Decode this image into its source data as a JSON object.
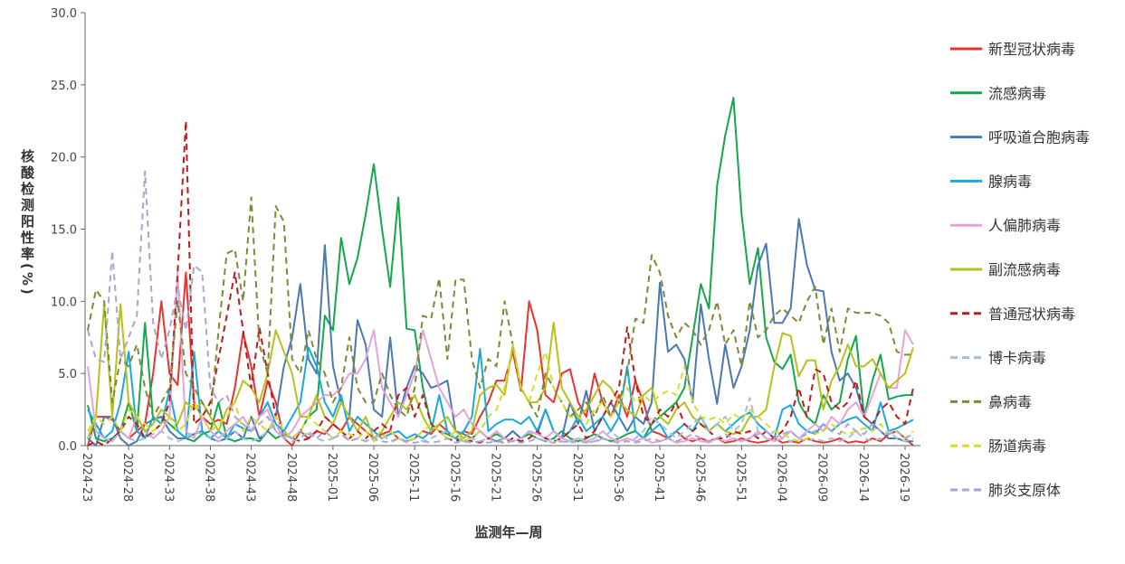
{
  "chart_data": {
    "type": "line",
    "y_label": "核酸检测阳性率(%)",
    "x_label": "监测年—周",
    "ylim": [
      0,
      30
    ],
    "yticks": [
      {
        "value": 0,
        "label": "0.0"
      },
      {
        "value": 5,
        "label": "5.0"
      },
      {
        "value": 10,
        "label": "10.0"
      },
      {
        "value": 15,
        "label": "15.0"
      },
      {
        "value": 20,
        "label": "20.0"
      },
      {
        "value": 25,
        "label": "25.0"
      },
      {
        "value": 30,
        "label": "30.0"
      }
    ],
    "categories": [
      "2024-23",
      null,
      null,
      null,
      null,
      "2024-28",
      null,
      null,
      null,
      null,
      "2024-33",
      null,
      null,
      null,
      null,
      "2024-38",
      null,
      null,
      null,
      null,
      "2024-43",
      null,
      null,
      null,
      null,
      "2024-48",
      null,
      null,
      null,
      null,
      "2025-01",
      null,
      null,
      null,
      null,
      "2025-06",
      null,
      null,
      null,
      null,
      "2025-11",
      null,
      null,
      null,
      null,
      "2025-16",
      null,
      null,
      null,
      null,
      "2025-21",
      null,
      null,
      null,
      null,
      "2025-26",
      null,
      null,
      null,
      null,
      "2025-31",
      null,
      null,
      null,
      null,
      "2025-36",
      null,
      null,
      null,
      null,
      "2025-41",
      null,
      null,
      null,
      null,
      "2025-46",
      null,
      null,
      null,
      null,
      "2025-51",
      null,
      null,
      null,
      null,
      "2026-04",
      null,
      null,
      null,
      null,
      "2026-09",
      null,
      null,
      null,
      null,
      "2026-14",
      null,
      null,
      null,
      null,
      "2026-19",
      null
    ],
    "series": [
      {
        "name": "新型冠状病毒",
        "color": "#e8332e",
        "dashed": false,
        "values": [
          0,
          2,
          2,
          1.8,
          1,
          0.5,
          1,
          1.5,
          5,
          10,
          5,
          4.2,
          12,
          3,
          2,
          1.5,
          1.8,
          1.5,
          4,
          7.8,
          5.5,
          2,
          4.5,
          3,
          0.5,
          0,
          1,
          0.5,
          1,
          0.8,
          1.5,
          1,
          2,
          1.5,
          1,
          0.5,
          0.8,
          1,
          0.5,
          0.3,
          0.5,
          1,
          0.8,
          1.5,
          1,
          0.5,
          1,
          0.8,
          2,
          3,
          4.5,
          4.5,
          6.5,
          3.8,
          10,
          8,
          3.5,
          3,
          5,
          5.3,
          3,
          2,
          5,
          3,
          2,
          3.5,
          2,
          4.5,
          3,
          1,
          0.8,
          0.5,
          1,
          0.5,
          0.3,
          0.5,
          0.3,
          0.5,
          0.2,
          0.3,
          0.5,
          0.3,
          0.2,
          0.3,
          0.5,
          0.2,
          0.3,
          0.2,
          0.5,
          0.3,
          0.2,
          0.3,
          0.5,
          0.2,
          0.3,
          0.2,
          0.5,
          0.3,
          0.8,
          1,
          0.5,
          0
        ]
      },
      {
        "name": "流感病毒",
        "color": "#13a84a",
        "dashed": false,
        "values": [
          2.8,
          0.5,
          0.3,
          0.5,
          1,
          3,
          1,
          8.5,
          1.8,
          2,
          1.5,
          1,
          0.5,
          0.3,
          0.8,
          1,
          3,
          0.5,
          0.3,
          0.5,
          0.5,
          0.3,
          1,
          0.5,
          0.8,
          0.5,
          1,
          2,
          2.5,
          9,
          8,
          14.4,
          11.2,
          13,
          16,
          19.5,
          15,
          11,
          17.2,
          8.1,
          8,
          4,
          1.5,
          1,
          0.8,
          0.5,
          0.3,
          0.5,
          1,
          0.5,
          0.8,
          0.5,
          1,
          0.5,
          0.8,
          0.5,
          0.3,
          0.5,
          1,
          0.5,
          0.3,
          0.5,
          0.8,
          0.5,
          0.3,
          0.5,
          0.8,
          1,
          0.5,
          1.5,
          2,
          2.5,
          3,
          4,
          7.5,
          11.2,
          9.5,
          18,
          21.5,
          24.1,
          16,
          11.2,
          13.7,
          7.5,
          5.8,
          5.3,
          6.3,
          3,
          2,
          1.5,
          3.5,
          2.5,
          3,
          6,
          7.6,
          2,
          4.5,
          6.3,
          3.2,
          3.4,
          3.5,
          3.5
        ]
      },
      {
        "name": "呼吸道合胞病毒",
        "color": "#4a78b4",
        "dashed": false,
        "values": [
          0.5,
          0,
          2,
          2,
          0.5,
          0,
          0.3,
          1.5,
          1.8,
          2,
          1,
          0.5,
          0.5,
          0.8,
          1,
          0.5,
          0.3,
          0.5,
          1,
          0.5,
          2,
          0.5,
          1,
          2,
          5.5,
          7.5,
          11.2,
          6,
          5,
          13.9,
          5.5,
          3,
          2,
          8.7,
          7,
          2.5,
          2,
          7.5,
          2,
          4,
          5.5,
          5,
          4,
          4.2,
          4.5,
          1,
          0.8,
          0.5,
          1,
          0.5,
          0.3,
          0.5,
          1,
          0.5,
          1,
          0.8,
          2.5,
          1,
          0.5,
          3,
          1.5,
          3.8,
          1,
          2,
          3,
          2,
          1,
          2,
          1.5,
          3,
          11.3,
          6.5,
          7,
          6,
          3,
          9.8,
          6,
          2.9,
          7,
          4,
          5.5,
          8,
          12.5,
          14,
          8.5,
          8.5,
          9.5,
          15.7,
          12.5,
          10.8,
          10.7,
          6.5,
          4.5,
          5,
          4,
          2,
          1.5,
          1,
          0.5,
          0.5,
          0.3,
          0.3
        ]
      },
      {
        "name": "腺病毒",
        "color": "#17a9e1",
        "dashed": false,
        "values": [
          2.5,
          1.5,
          0.5,
          1,
          3,
          6.5,
          1,
          0.5,
          2,
          1.5,
          3.8,
          1,
          0.5,
          6.5,
          1,
          0.5,
          1,
          0.5,
          1.5,
          1.2,
          1,
          2,
          3,
          1.5,
          1,
          2,
          3,
          6.8,
          5.5,
          3,
          2,
          3.5,
          1,
          2,
          1.5,
          1,
          0.5,
          0.8,
          1,
          0.5,
          0.8,
          0.5,
          1,
          3.5,
          1,
          0.5,
          1,
          2,
          6.7,
          1,
          1.5,
          1.8,
          1.8,
          1.5,
          2,
          1,
          2.5,
          1,
          0.5,
          1,
          2,
          1,
          1.5,
          2,
          1,
          2,
          5.5,
          1,
          0.5,
          1,
          1.5,
          0.5,
          1,
          1.5,
          1,
          2,
          1,
          1.5,
          1,
          1.5,
          2,
          2.3,
          1.5,
          1,
          0.5,
          2.5,
          2.8,
          1.5,
          1,
          0.8,
          1.5,
          1,
          1.5,
          1.8,
          2,
          1.5,
          1,
          3,
          1,
          1.2,
          1.5,
          1.8
        ]
      },
      {
        "name": "人偏肺病毒",
        "color": "#e6a3d9",
        "dashed": false,
        "values": [
          5.5,
          1,
          0.5,
          0.3,
          1,
          0.5,
          2,
          1,
          0.5,
          1,
          2,
          12,
          1,
          0.5,
          2,
          1,
          0.5,
          1,
          1.5,
          2,
          1,
          2,
          2.5,
          1,
          0.5,
          1,
          2,
          2.5,
          3,
          3.5,
          3.5,
          4,
          5,
          5,
          6,
          8,
          4,
          3,
          2,
          3.5,
          5,
          8,
          6,
          4,
          3,
          2,
          2.5,
          1.5,
          1,
          0.5,
          1,
          0.5,
          0.3,
          0.5,
          1,
          0.8,
          0.5,
          1,
          0.5,
          0.3,
          0.5,
          0.3,
          0.5,
          1,
          0.5,
          0.3,
          0.5,
          0.3,
          0.5,
          0.2,
          0.3,
          0.5,
          0.2,
          0.3,
          0.5,
          0.3,
          0.2,
          0.5,
          0.3,
          0.5,
          0.3,
          0.5,
          1,
          0.5,
          0.3,
          0.5,
          1,
          0.5,
          1,
          1.5,
          1,
          2,
          1.5,
          2.5,
          3,
          2,
          3.5,
          5,
          4,
          4,
          8,
          7
        ]
      },
      {
        "name": "副流感病毒",
        "color": "#b5c21d",
        "dashed": false,
        "values": [
          0.5,
          2,
          9.8,
          2,
          9.8,
          3,
          2,
          1,
          1.5,
          2.5,
          2,
          1.5,
          3,
          2.5,
          3,
          2,
          1,
          2.5,
          3,
          4.5,
          4,
          3,
          5,
          8,
          6.5,
          5,
          2,
          2,
          3.5,
          2,
          1.5,
          3,
          2,
          1,
          2,
          0.5,
          1,
          2,
          3,
          2.5,
          3.5,
          2,
          1,
          1.5,
          2,
          1,
          0.5,
          1,
          3.5,
          4,
          4.2,
          3.5,
          7,
          4,
          3,
          3,
          4,
          8.5,
          4,
          3,
          2,
          2.5,
          3.5,
          4.5,
          4,
          3,
          2.5,
          2,
          3.5,
          4,
          2,
          1.5,
          2.5,
          3,
          2,
          1.5,
          1,
          1.5,
          1,
          0.8,
          1,
          2,
          2,
          2.5,
          5.5,
          7.8,
          7.6,
          4.8,
          5.9,
          5.9,
          2.5,
          4.5,
          5.5,
          7,
          5.5,
          5.5,
          6,
          5,
          4,
          4.5,
          5,
          6.8
        ]
      },
      {
        "name": "普通冠状病毒",
        "color": "#bf1b1f",
        "dashed": true,
        "values": [
          0,
          0.3,
          0,
          0.5,
          1,
          2,
          1.5,
          0.5,
          1,
          1.5,
          3,
          12,
          22.5,
          1.5,
          2,
          3,
          6,
          9,
          12,
          8,
          4,
          8.2,
          5,
          2,
          1,
          0.5,
          0.3,
          0.5,
          1,
          2,
          1.5,
          1,
          0.5,
          1,
          0.5,
          1,
          1.5,
          1,
          3.5,
          4,
          2,
          3.5,
          1.5,
          1,
          0.5,
          0.3,
          0.5,
          0.3,
          0.2,
          0.5,
          0.3,
          0.2,
          0.5,
          0.3,
          0.5,
          1,
          0.5,
          0.3,
          0.5,
          1,
          1.5,
          0.5,
          1,
          2,
          3,
          4,
          8.2,
          4.5,
          2,
          1.5,
          2.5,
          2,
          3,
          1.5,
          1,
          1.5,
          1,
          0.5,
          0.5,
          1,
          0.8,
          1,
          0.5,
          1,
          0.5,
          1,
          2,
          4,
          2,
          5.3,
          5,
          3,
          2.5,
          3,
          4.5,
          2,
          1.5,
          2.5,
          3,
          2,
          1.5,
          4
        ]
      },
      {
        "name": "博卡病毒",
        "color": "#a3bfdb",
        "dashed": true,
        "values": [
          0.5,
          1,
          0.5,
          0.3,
          1,
          0.5,
          0.3,
          0.5,
          0.8,
          1,
          0.5,
          0.3,
          0.5,
          1,
          0.8,
          0.5,
          0.3,
          0.5,
          1,
          0.5,
          0.3,
          0.5,
          1,
          1.5,
          0.5,
          0.3,
          0.5,
          1,
          0.5,
          0.3,
          0.5,
          1,
          0.3,
          0.5,
          0.3,
          0.5,
          0.8,
          0.3,
          0.5,
          0.2,
          0.5,
          0.3,
          0.5,
          0.8,
          1,
          0.5,
          0.3,
          0.5,
          0.3,
          0.5,
          0.2,
          0.5,
          0.3,
          0.5,
          1,
          0.5,
          0.3,
          0.5,
          0.2,
          0.3,
          0.5,
          0.3,
          0.2,
          0.5,
          1,
          0.5,
          0.3,
          0.5,
          1,
          2,
          1.5,
          1,
          0.5,
          1,
          1.5,
          2,
          1,
          1.5,
          2,
          1,
          1.5,
          3.3,
          1,
          0.5,
          1,
          0.5,
          0.3,
          0.5,
          0.3,
          0.5,
          0.3,
          0.5,
          0.3,
          0.5,
          1,
          0.5,
          0.3,
          0.5,
          1,
          0.5,
          0.3,
          0.5
        ]
      },
      {
        "name": "鼻病毒",
        "color": "#7d8a36",
        "dashed": true,
        "values": [
          8,
          10.8,
          10,
          3,
          6,
          5.5,
          7,
          4,
          2,
          3,
          4,
          10,
          5,
          4,
          3,
          2,
          8,
          13.3,
          13.6,
          10,
          17.2,
          7,
          5,
          16.6,
          15.5,
          6,
          5,
          8,
          6,
          5,
          3,
          4,
          7.5,
          4,
          3,
          3,
          5,
          3.5,
          2.5,
          2,
          4,
          9,
          8.8,
          11.6,
          6,
          11.5,
          11.5,
          6,
          4,
          6,
          5.5,
          10,
          7,
          4,
          3,
          2,
          5,
          4,
          3,
          2,
          2.5,
          3,
          2,
          3.5,
          2,
          3,
          5,
          8.8,
          8.5,
          13.2,
          12,
          9,
          7.5,
          8.5,
          8,
          7,
          8,
          10,
          7,
          8,
          5.5,
          10,
          7.5,
          8,
          9,
          9.5,
          9,
          8.5,
          10,
          11,
          7,
          9.5,
          6.5,
          9.5,
          9.2,
          9.2,
          9.2,
          9,
          8.5,
          6.5,
          6.3,
          6.3
        ]
      },
      {
        "name": "肠道病毒",
        "color": "#d7de2a",
        "dashed": true,
        "values": [
          1,
          2,
          1.5,
          2,
          1,
          2.5,
          2,
          1.5,
          1,
          1.5,
          2,
          1,
          1.5,
          3,
          2,
          1,
          1.5,
          2,
          3,
          1,
          2,
          1.5,
          1,
          2,
          1,
          0.5,
          1,
          2,
          1.5,
          1,
          0.5,
          1,
          0.8,
          0.5,
          1,
          0.3,
          0.5,
          1,
          0.5,
          0.3,
          0.5,
          1,
          1.5,
          1,
          0.5,
          1,
          0.3,
          0.5,
          1,
          2,
          2.5,
          4,
          7,
          4,
          3,
          5,
          6.5,
          4,
          3,
          2,
          2,
          1.5,
          2.5,
          3,
          2,
          3,
          4,
          3,
          3.5,
          3,
          3.5,
          3.8,
          3.5,
          5.5,
          3,
          2,
          1.8,
          2,
          1.5,
          2.2,
          1.8,
          2.5,
          2,
          1.5,
          1,
          0.8,
          0.5,
          0.3,
          0.5,
          0.8,
          1,
          1.5,
          1,
          0.8,
          1,
          1.2,
          1,
          1.5,
          0.8,
          1,
          0.5,
          1
        ]
      },
      {
        "name": "肺炎支原体",
        "color": "#aba5cf",
        "dashed": true,
        "values": [
          8,
          6,
          5.8,
          13.5,
          6,
          7.5,
          9,
          19,
          8.5,
          6,
          8,
          11,
          8,
          12.5,
          12,
          4,
          3,
          3.5,
          2,
          1.5,
          1,
          1.5,
          2,
          1,
          0.8,
          0.5,
          1,
          0.8,
          0.5,
          1,
          0.5,
          0.8,
          0.3,
          0.5,
          0.3,
          0.5,
          0.3,
          0.2,
          0.5,
          0.3,
          0.2,
          0.3,
          0.2,
          0.3,
          0.5,
          0.2,
          0.3,
          0.2,
          0.3,
          0.2,
          0.3,
          0.2,
          0.3,
          0.2,
          0.3,
          0.5,
          0.3,
          0.2,
          0.3,
          0.2,
          0.3,
          0.2,
          0.3,
          0.5,
          0.3,
          0.2,
          0.3,
          0.2,
          0.3,
          0.5,
          0.3,
          0.5,
          0.3,
          0.5,
          0.8,
          0.5,
          0.3,
          0.5,
          0.8,
          0.5,
          0.3,
          0.5,
          0.8,
          1,
          0.5,
          0.8,
          1,
          0.5,
          0.8,
          1,
          1.5,
          1,
          0.8,
          1.5,
          1,
          0.8,
          1.5,
          1,
          0.8,
          1,
          0.5,
          0.8
        ]
      }
    ]
  }
}
